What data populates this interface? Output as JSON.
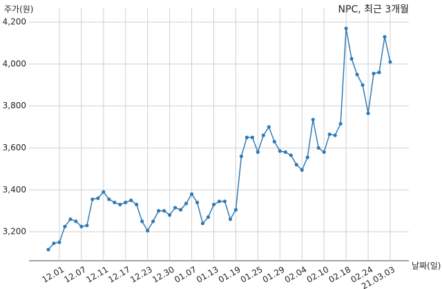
{
  "chart_data": {
    "type": "line",
    "title": "NPC, 최근 3개월",
    "y_label": "주가(원)",
    "x_label": "날짜(일)",
    "categories": [
      null,
      null,
      "12.01",
      null,
      null,
      null,
      "12.07",
      null,
      null,
      null,
      "12.11",
      null,
      null,
      null,
      "12.17",
      null,
      null,
      null,
      "12.23",
      null,
      null,
      null,
      "12.30",
      null,
      null,
      null,
      "01.07",
      null,
      null,
      null,
      "01.13",
      null,
      null,
      null,
      "01.19",
      null,
      null,
      null,
      "01.25",
      null,
      null,
      null,
      "01.29",
      null,
      null,
      null,
      "02.04",
      null,
      null,
      null,
      "02.10",
      null,
      null,
      null,
      "02.18",
      null,
      null,
      null,
      "02.24",
      null,
      null,
      null,
      "21.03.03"
    ],
    "series": [
      {
        "name": "NPC",
        "color": "#2f7ab5",
        "values": [
          3115,
          3145,
          3150,
          3225,
          3260,
          3250,
          3225,
          3230,
          3355,
          3360,
          3390,
          3355,
          3340,
          3330,
          3340,
          3350,
          3330,
          3250,
          3205,
          3250,
          3300,
          3300,
          3280,
          3315,
          3305,
          3335,
          3380,
          3340,
          3240,
          3270,
          3330,
          3345,
          3345,
          3260,
          3305,
          3560,
          3650,
          3650,
          3580,
          3660,
          3700,
          3630,
          3585,
          3580,
          3565,
          3520,
          3495,
          3555,
          3735,
          3600,
          3580,
          3665,
          3660,
          3715,
          4170,
          4025,
          3950,
          3900,
          3765,
          3955,
          3960,
          4130,
          4010
        ]
      }
    ],
    "ylim": [
      3062,
      4266
    ],
    "yticks": [
      {
        "value": 3200,
        "label": "3,200"
      },
      {
        "value": 3400,
        "label": "3,400"
      },
      {
        "value": 3600,
        "label": "3,600"
      },
      {
        "value": 3800,
        "label": "3,800"
      },
      {
        "value": 4000,
        "label": "4,000"
      },
      {
        "value": 4200,
        "label": "4,200"
      }
    ],
    "grid": true
  }
}
